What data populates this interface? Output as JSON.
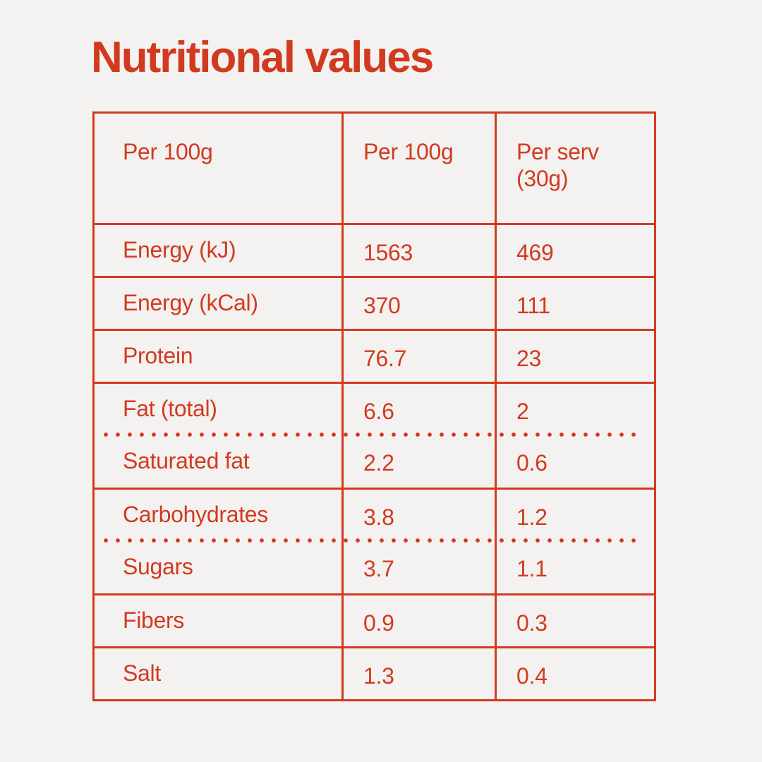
{
  "colors": {
    "accent": "#d23a20",
    "background": "#f3f2f0"
  },
  "title": "Nutritional values",
  "table": {
    "columns": [
      "Per 100g",
      "Per 100g",
      "Per serv\n(30g)"
    ],
    "rows": [
      {
        "label": "Energy (kJ)",
        "per_100g": "1563",
        "per_serving": "469"
      },
      {
        "label": "Energy (kCal)",
        "per_100g": "370",
        "per_serving": "111"
      },
      {
        "label": "Protein",
        "per_100g": "76.7",
        "per_serving": "23"
      },
      {
        "label": "Fat (total)",
        "per_100g": "6.6",
        "per_serving": "2"
      },
      {
        "label": "Saturated fat",
        "per_100g": "2.2",
        "per_serving": "0.6"
      },
      {
        "label": "Carbohydrates",
        "per_100g": "3.8",
        "per_serving": "1.2"
      },
      {
        "label": "Sugars",
        "per_100g": "3.7",
        "per_serving": "1.1"
      },
      {
        "label": "Fibers",
        "per_100g": "0.9",
        "per_serving": "0.3"
      },
      {
        "label": "Salt",
        "per_100g": "1.3",
        "per_serving": "0.4"
      }
    ]
  }
}
